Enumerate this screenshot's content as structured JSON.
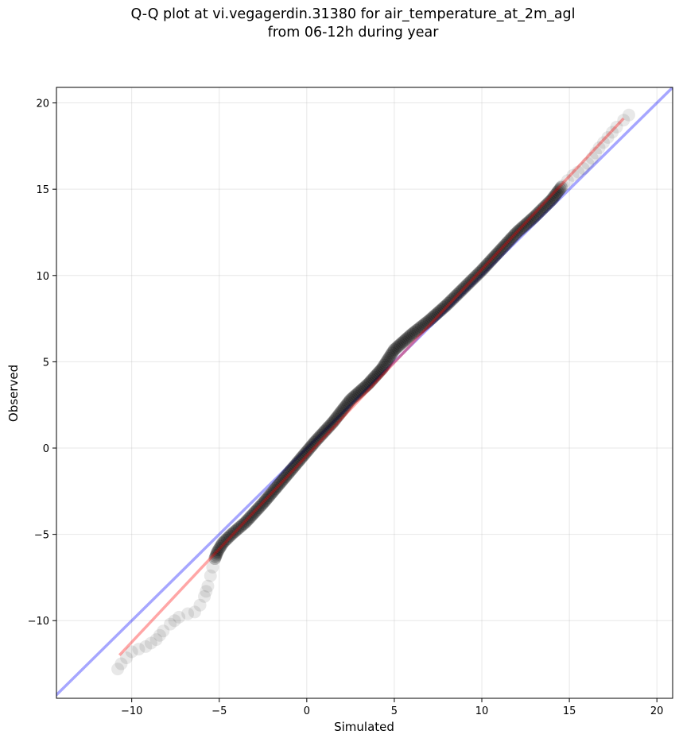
{
  "chart_data": {
    "type": "scatter",
    "title_lines": [
      "Q-Q plot at vi.vegagerdin.31380 for air_temperature_at_2m_agl",
      "from 06-12h during year"
    ],
    "xlabel": "Simulated",
    "ylabel": "Observed",
    "xlim": [
      -14.3,
      20.9
    ],
    "ylim": [
      -14.5,
      20.9
    ],
    "xticks": [
      -10,
      -5,
      0,
      5,
      10,
      15,
      20
    ],
    "yticks": [
      -10,
      -5,
      0,
      5,
      10,
      15,
      20
    ],
    "xtick_labels": [
      "−10",
      "−5",
      "0",
      "5",
      "10",
      "15",
      "20"
    ],
    "ytick_labels": [
      "−10",
      "−5",
      "0",
      "5",
      "10",
      "15",
      "20"
    ],
    "grid": true,
    "identity_line": {
      "color": "#0000ff",
      "alpha": 0.35
    },
    "fit_line": {
      "color": "#ff0000",
      "alpha": 0.35,
      "x": [
        -10.7,
        18.1
      ],
      "y": [
        -12.0,
        19.1
      ]
    },
    "points_color": "#000000",
    "quantile_curve": [
      [
        -10.8,
        -12.8
      ],
      [
        -10.6,
        -12.5
      ],
      [
        -10.0,
        -11.8
      ],
      [
        -9.2,
        -11.5
      ],
      [
        -8.6,
        -11.1
      ],
      [
        -8.2,
        -10.6
      ],
      [
        -7.8,
        -10.2
      ],
      [
        -7.3,
        -9.8
      ],
      [
        -6.8,
        -9.6
      ],
      [
        -6.4,
        -9.5
      ],
      [
        -6.1,
        -9.1
      ],
      [
        -5.85,
        -8.6
      ],
      [
        -5.65,
        -8.0
      ],
      [
        -5.5,
        -7.4
      ],
      [
        -5.38,
        -6.9
      ],
      [
        -5.25,
        -6.4
      ],
      [
        -5.1,
        -6.0
      ],
      [
        -4.8,
        -5.5
      ],
      [
        -4.3,
        -5.0
      ],
      [
        -3.5,
        -4.3
      ],
      [
        -2.5,
        -3.2
      ],
      [
        -1.5,
        -2.0
      ],
      [
        -0.5,
        -0.8
      ],
      [
        0.5,
        0.4
      ],
      [
        1.5,
        1.5
      ],
      [
        2.5,
        2.8
      ],
      [
        3.5,
        3.7
      ],
      [
        4.3,
        4.6
      ],
      [
        5.0,
        5.7
      ],
      [
        6.0,
        6.6
      ],
      [
        7.0,
        7.4
      ],
      [
        8.0,
        8.3
      ],
      [
        9.0,
        9.3
      ],
      [
        10.0,
        10.3
      ],
      [
        11.0,
        11.4
      ],
      [
        12.0,
        12.5
      ],
      [
        13.0,
        13.4
      ],
      [
        14.0,
        14.4
      ],
      [
        14.6,
        15.2
      ],
      [
        15.2,
        15.8
      ],
      [
        15.8,
        16.2
      ],
      [
        16.3,
        16.8
      ],
      [
        16.7,
        17.4
      ],
      [
        17.2,
        18.0
      ],
      [
        17.7,
        18.6
      ],
      [
        18.1,
        19.0
      ],
      [
        18.4,
        19.3
      ]
    ]
  }
}
